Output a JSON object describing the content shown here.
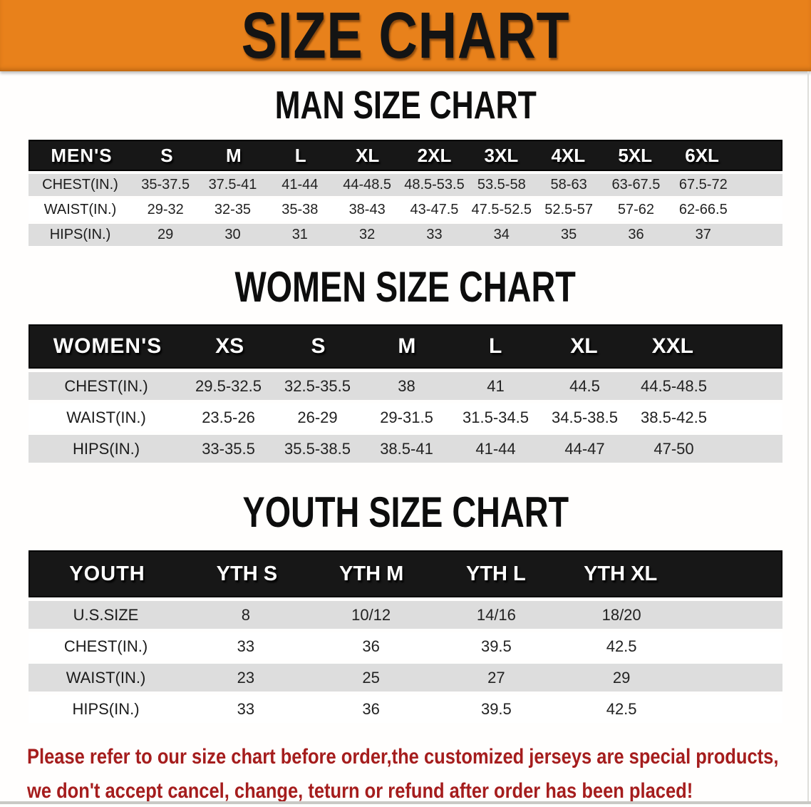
{
  "banner": {
    "title": "SIZE CHART"
  },
  "sections": {
    "men": {
      "heading": "MAN SIZE CHART"
    },
    "women": {
      "heading": "WOMEN SIZE CHART"
    },
    "youth": {
      "heading": "YOUTH SIZE CHART"
    }
  },
  "tables": {
    "men": {
      "header": [
        "MEN'S",
        "S",
        "M",
        "L",
        "XL",
        "2XL",
        "3XL",
        "4XL",
        "5XL",
        "6XL"
      ],
      "rows": [
        [
          "CHEST(IN.)",
          "35-37.5",
          "37.5-41",
          "41-44",
          "44-48.5",
          "48.5-53.5",
          "53.5-58",
          "58-63",
          "63-67.5",
          "67.5-72"
        ],
        [
          "WAIST(IN.)",
          "29-32",
          "32-35",
          "35-38",
          "38-43",
          "43-47.5",
          "47.5-52.5",
          "52.5-57",
          "57-62",
          "62-66.5"
        ],
        [
          "HIPS(IN.)",
          "29",
          "30",
          "31",
          "32",
          "33",
          "34",
          "35",
          "36",
          "37"
        ]
      ]
    },
    "women": {
      "header": [
        "WOMEN'S",
        "XS",
        "S",
        "M",
        "L",
        "XL",
        "XXL"
      ],
      "rows": [
        [
          "CHEST(IN.)",
          "29.5-32.5",
          "32.5-35.5",
          "38",
          "41",
          "44.5",
          "44.5-48.5"
        ],
        [
          "WAIST(IN.)",
          "23.5-26",
          "26-29",
          "29-31.5",
          "31.5-34.5",
          "34.5-38.5",
          "38.5-42.5"
        ],
        [
          "HIPS(IN.)",
          "33-35.5",
          "35.5-38.5",
          "38.5-41",
          "41-44",
          "44-47",
          "47-50"
        ]
      ]
    },
    "youth": {
      "header": [
        "YOUTH",
        "YTH S",
        "YTH M",
        "YTH L",
        "YTH XL"
      ],
      "rows": [
        [
          "U.S.SIZE",
          "8",
          "10/12",
          "14/16",
          "18/20"
        ],
        [
          "CHEST(IN.)",
          "33",
          "36",
          "39.5",
          "42.5"
        ],
        [
          "WAIST(IN.)",
          "23",
          "25",
          "27",
          "29"
        ],
        [
          "HIPS(IN.)",
          "33",
          "36",
          "39.5",
          "42.5"
        ]
      ]
    }
  },
  "disclaimer": {
    "line1": "Please refer to our size chart before order,the customized jerseys are special products,",
    "line2": "we don't accept cancel, change, teturn or refund after order has been placed!"
  },
  "colors": {
    "banner_orange": "#E8811B",
    "header_black": "#171717",
    "row_gray": "#DDDDDD",
    "disclaimer_red": "#A51D1D"
  }
}
